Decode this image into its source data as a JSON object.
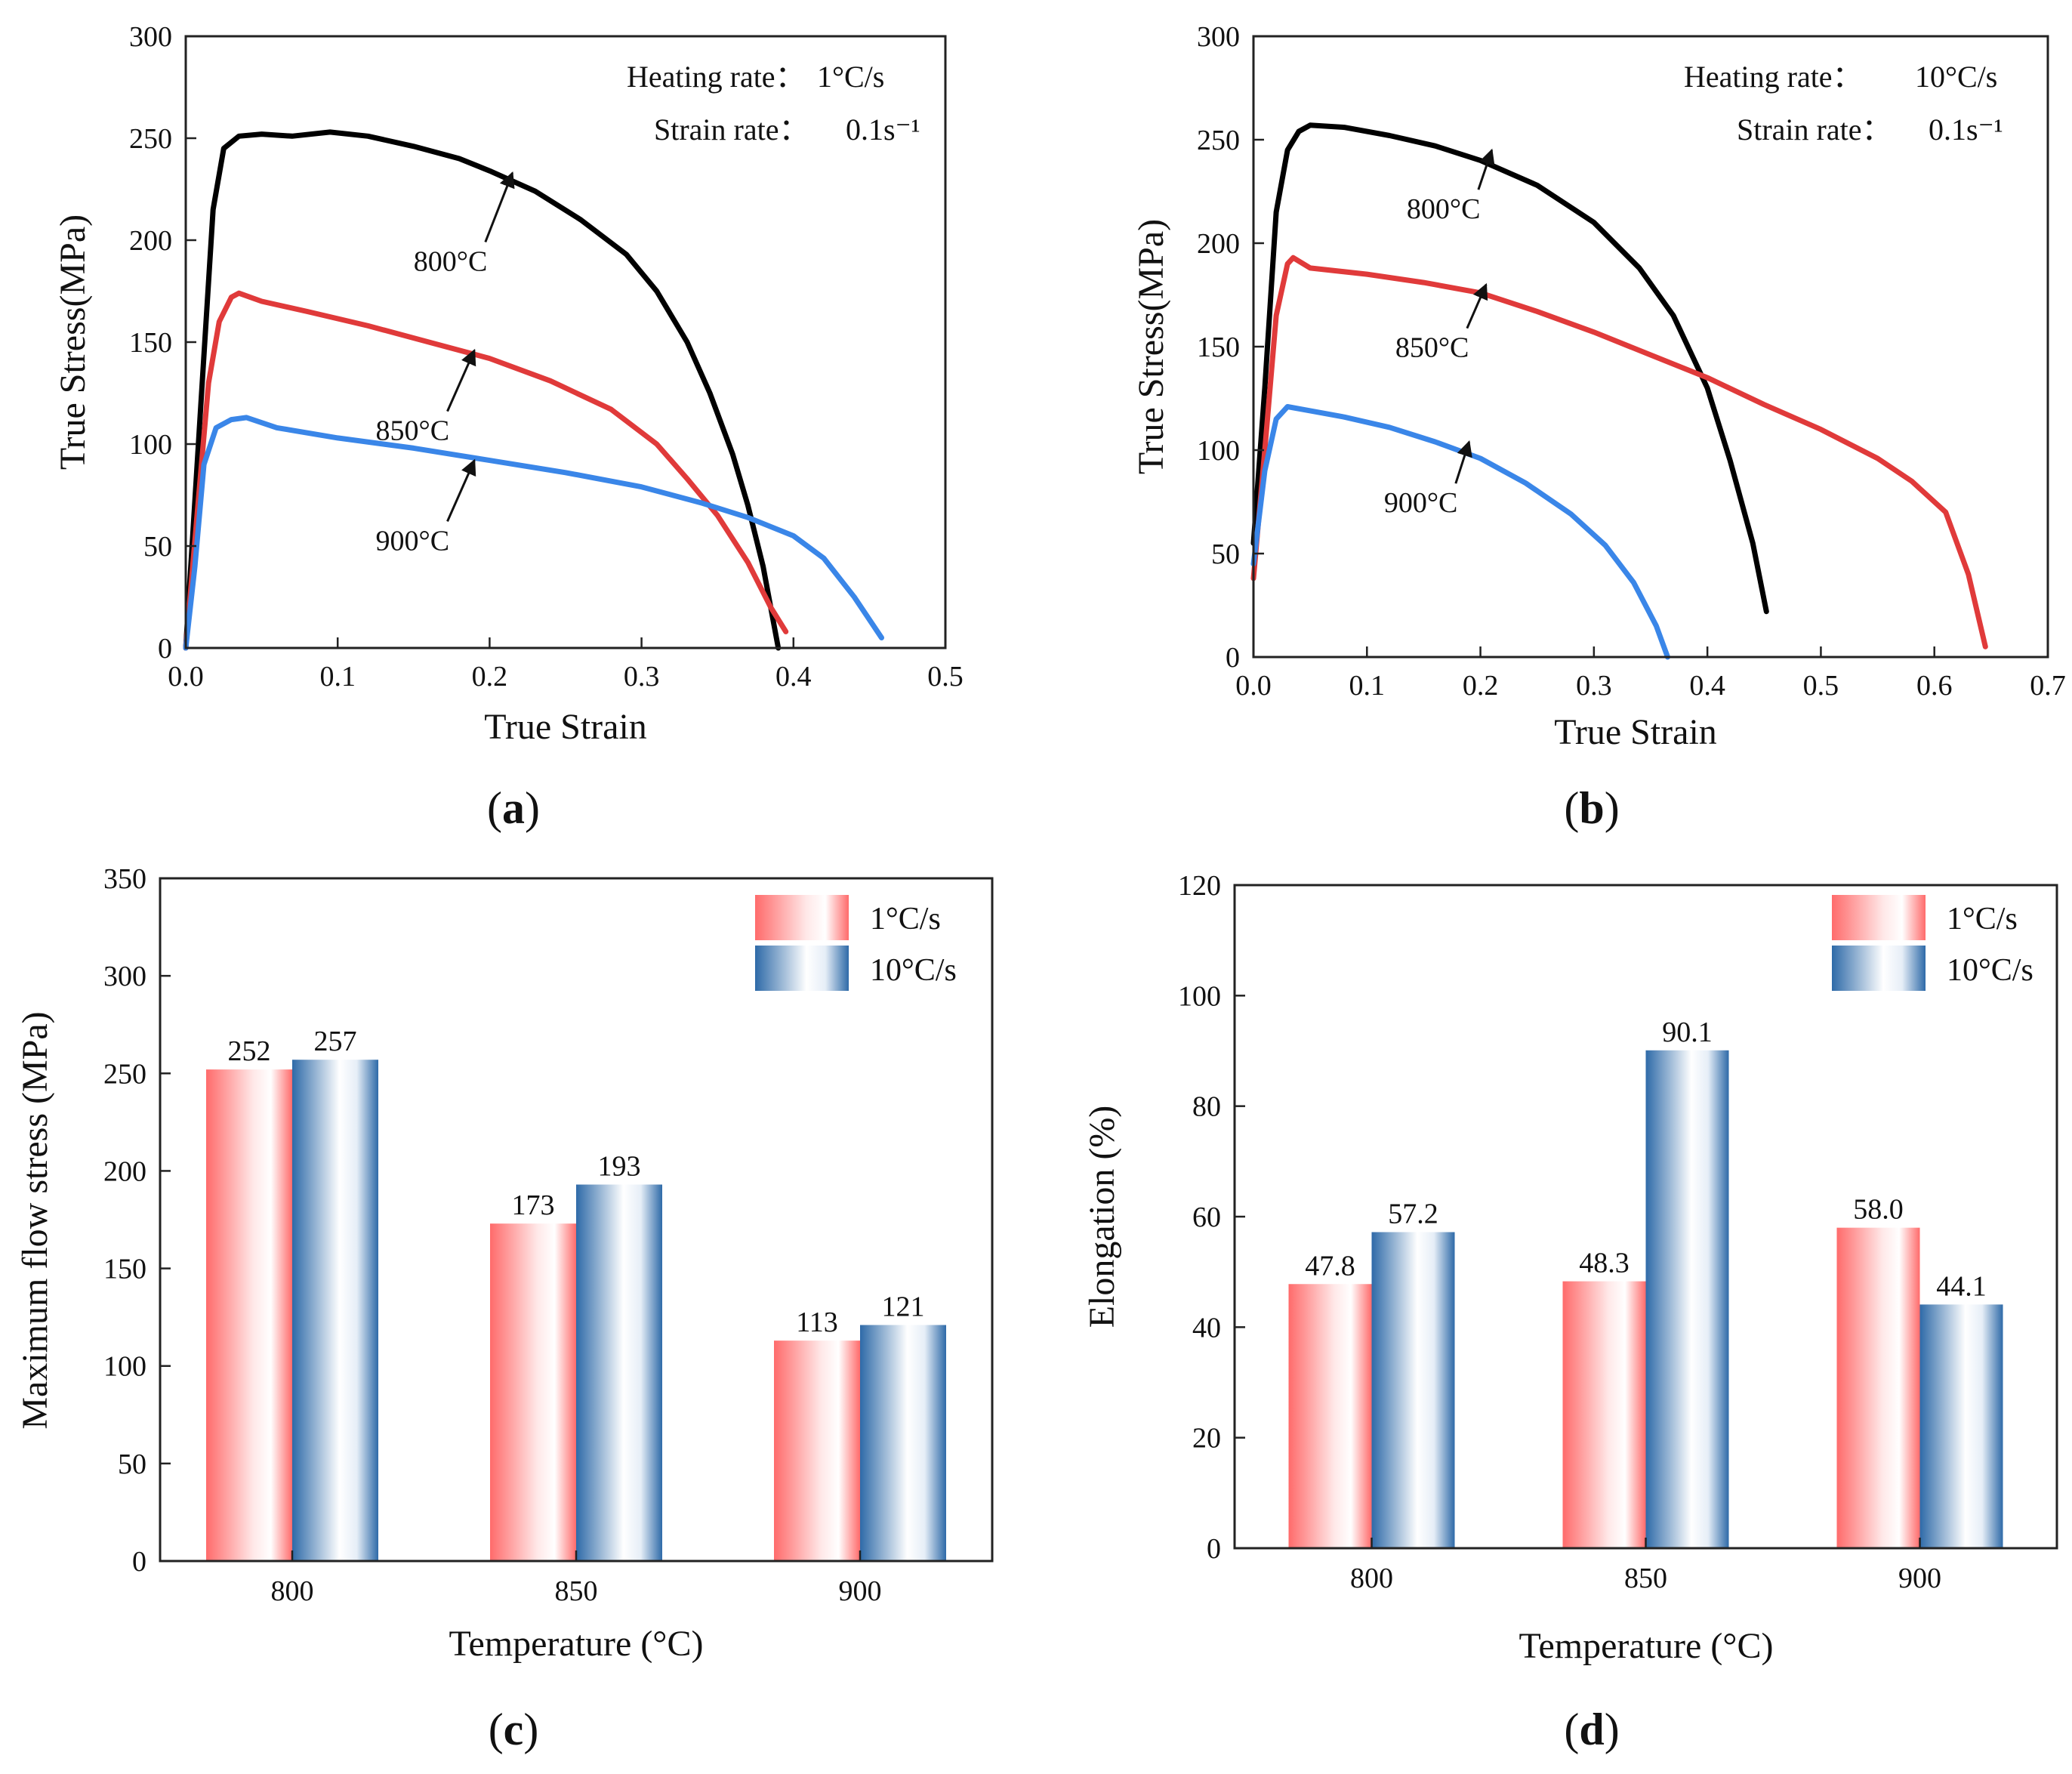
{
  "colors": {
    "black": "#000000",
    "red": "#e03a3a",
    "blue": "#3a86e8",
    "bar_red": "#ff6b6b",
    "bar_blue": "#2e6aa8"
  },
  "chart_data": [
    {
      "id": "a",
      "type": "line",
      "panel_label": {
        "open": "(",
        "letter": "a",
        "close": ")"
      },
      "xlabel": "True Strain",
      "ylabel": "True Stress(MPa)",
      "xlim": [
        0,
        0.5
      ],
      "ylim": [
        0,
        300
      ],
      "xticks": [
        "0.0",
        "0.1",
        "0.2",
        "0.3",
        "0.4",
        "0.5"
      ],
      "yticks": [
        "0",
        "50",
        "100",
        "150",
        "200",
        "250",
        "300"
      ],
      "conditions": [
        {
          "label": "Heating rate：",
          "value": "1°C/s"
        },
        {
          "label": "Strain rate：",
          "value": "0.1s⁻¹"
        }
      ],
      "series": [
        {
          "name": "800°C",
          "color": "#000000",
          "points": [
            [
              0.0,
              0
            ],
            [
              0.01,
              120
            ],
            [
              0.018,
              215
            ],
            [
              0.025,
              245
            ],
            [
              0.035,
              251
            ],
            [
              0.05,
              252
            ],
            [
              0.07,
              251
            ],
            [
              0.095,
              253
            ],
            [
              0.12,
              251
            ],
            [
              0.15,
              246
            ],
            [
              0.18,
              240
            ],
            [
              0.2,
              234
            ],
            [
              0.23,
              224
            ],
            [
              0.26,
              210
            ],
            [
              0.29,
              193
            ],
            [
              0.31,
              175
            ],
            [
              0.33,
              150
            ],
            [
              0.345,
              125
            ],
            [
              0.36,
              95
            ],
            [
              0.37,
              70
            ],
            [
              0.38,
              40
            ],
            [
              0.39,
              0
            ]
          ]
        },
        {
          "name": "850°C",
          "color": "#e03a3a",
          "points": [
            [
              0.0,
              0
            ],
            [
              0.008,
              70
            ],
            [
              0.015,
              130
            ],
            [
              0.022,
              160
            ],
            [
              0.03,
              172
            ],
            [
              0.035,
              174
            ],
            [
              0.05,
              170
            ],
            [
              0.08,
              165
            ],
            [
              0.12,
              158
            ],
            [
              0.16,
              150
            ],
            [
              0.2,
              142
            ],
            [
              0.24,
              131
            ],
            [
              0.28,
              117
            ],
            [
              0.31,
              100
            ],
            [
              0.33,
              83
            ],
            [
              0.35,
              65
            ],
            [
              0.37,
              42
            ],
            [
              0.385,
              20
            ],
            [
              0.395,
              8
            ]
          ]
        },
        {
          "name": "900°C",
          "color": "#3a86e8",
          "points": [
            [
              0.0,
              0
            ],
            [
              0.006,
              40
            ],
            [
              0.012,
              90
            ],
            [
              0.02,
              108
            ],
            [
              0.03,
              112
            ],
            [
              0.04,
              113
            ],
            [
              0.06,
              108
            ],
            [
              0.1,
              103
            ],
            [
              0.15,
              98
            ],
            [
              0.2,
              92
            ],
            [
              0.25,
              86
            ],
            [
              0.3,
              79
            ],
            [
              0.34,
              71
            ],
            [
              0.37,
              64
            ],
            [
              0.4,
              55
            ],
            [
              0.42,
              44
            ],
            [
              0.44,
              25
            ],
            [
              0.458,
              5
            ]
          ]
        }
      ],
      "annotations": [
        {
          "text": "800°C",
          "target": [
            0.215,
            233
          ],
          "label_at": [
            0.15,
            185
          ]
        },
        {
          "text": "850°C",
          "target": [
            0.19,
            146
          ],
          "label_at": [
            0.125,
            102
          ]
        },
        {
          "text": "900°C",
          "target": [
            0.19,
            92
          ],
          "label_at": [
            0.125,
            48
          ]
        }
      ]
    },
    {
      "id": "b",
      "type": "line",
      "panel_label": {
        "open": "(",
        "letter": "b",
        "close": ")"
      },
      "xlabel": "True Strain",
      "ylabel": "True Stress(MPa)",
      "xlim": [
        0,
        0.7
      ],
      "ylim": [
        0,
        300
      ],
      "xticks": [
        "0.0",
        "0.1",
        "0.2",
        "0.3",
        "0.4",
        "0.5",
        "0.6",
        "0.7"
      ],
      "yticks": [
        "0",
        "50",
        "100",
        "150",
        "200",
        "250",
        "300"
      ],
      "conditions": [
        {
          "label": "Heating rate：",
          "value": "10°C/s"
        },
        {
          "label": "Strain rate：",
          "value": "0.1s⁻¹"
        }
      ],
      "series": [
        {
          "name": "800°C",
          "color": "#000000",
          "points": [
            [
              0.0,
              55
            ],
            [
              0.01,
              130
            ],
            [
              0.02,
              215
            ],
            [
              0.03,
              245
            ],
            [
              0.04,
              254
            ],
            [
              0.05,
              257
            ],
            [
              0.08,
              256
            ],
            [
              0.12,
              252
            ],
            [
              0.16,
              247
            ],
            [
              0.2,
              240
            ],
            [
              0.25,
              228
            ],
            [
              0.3,
              210
            ],
            [
              0.34,
              188
            ],
            [
              0.37,
              165
            ],
            [
              0.4,
              130
            ],
            [
              0.42,
              95
            ],
            [
              0.44,
              55
            ],
            [
              0.452,
              22
            ]
          ]
        },
        {
          "name": "850°C",
          "color": "#e03a3a",
          "points": [
            [
              0.0,
              38
            ],
            [
              0.01,
              100
            ],
            [
              0.02,
              165
            ],
            [
              0.03,
              190
            ],
            [
              0.035,
              193
            ],
            [
              0.05,
              188
            ],
            [
              0.1,
              185
            ],
            [
              0.15,
              181
            ],
            [
              0.2,
              176
            ],
            [
              0.25,
              167
            ],
            [
              0.3,
              157
            ],
            [
              0.35,
              146
            ],
            [
              0.4,
              135
            ],
            [
              0.45,
              122
            ],
            [
              0.5,
              110
            ],
            [
              0.55,
              96
            ],
            [
              0.58,
              85
            ],
            [
              0.61,
              70
            ],
            [
              0.63,
              40
            ],
            [
              0.645,
              5
            ]
          ]
        },
        {
          "name": "900°C",
          "color": "#3a86e8",
          "points": [
            [
              0.0,
              45
            ],
            [
              0.01,
              90
            ],
            [
              0.02,
              115
            ],
            [
              0.03,
              121
            ],
            [
              0.05,
              119
            ],
            [
              0.08,
              116
            ],
            [
              0.12,
              111
            ],
            [
              0.16,
              104
            ],
            [
              0.2,
              96
            ],
            [
              0.24,
              84
            ],
            [
              0.28,
              69
            ],
            [
              0.31,
              54
            ],
            [
              0.335,
              36
            ],
            [
              0.355,
              15
            ],
            [
              0.365,
              0
            ]
          ]
        }
      ],
      "annotations": [
        {
          "text": "800°C",
          "target": [
            0.21,
            245
          ],
          "label_at": [
            0.135,
            212
          ]
        },
        {
          "text": "850°C",
          "target": [
            0.205,
            180
          ],
          "label_at": [
            0.125,
            145
          ]
        },
        {
          "text": "900°C",
          "target": [
            0.19,
            104
          ],
          "label_at": [
            0.115,
            70
          ]
        }
      ]
    },
    {
      "id": "c",
      "type": "bar",
      "panel_label": {
        "open": "(",
        "letter": "c",
        "close": ")"
      },
      "xlabel": "Temperature (°C)",
      "ylabel": "Maximum flow stress (MPa)",
      "ylim": [
        0,
        350
      ],
      "yticks": [
        "0",
        "50",
        "100",
        "150",
        "200",
        "250",
        "300",
        "350"
      ],
      "categories": [
        "800",
        "850",
        "900"
      ],
      "series": [
        {
          "name": "1°C/s",
          "values": [
            252,
            173,
            113
          ],
          "labels": [
            "252",
            "173",
            "113"
          ]
        },
        {
          "name": "10°C/s",
          "values": [
            257,
            193,
            121
          ],
          "labels": [
            "257",
            "193",
            "121"
          ]
        }
      ],
      "legend": "top-right"
    },
    {
      "id": "d",
      "type": "bar",
      "panel_label": {
        "open": "(",
        "letter": "d",
        "close": ")"
      },
      "xlabel": "Temperature (°C)",
      "ylabel": "Elongation (%)",
      "ylim": [
        0,
        120
      ],
      "yticks": [
        "0",
        "20",
        "40",
        "60",
        "80",
        "100",
        "120"
      ],
      "categories": [
        "800",
        "850",
        "900"
      ],
      "series": [
        {
          "name": "1°C/s",
          "values": [
            47.8,
            48.3,
            58.0
          ],
          "labels": [
            "47.8",
            "48.3",
            "58.0"
          ]
        },
        {
          "name": "10°C/s",
          "values": [
            57.2,
            90.1,
            44.1
          ],
          "labels": [
            "57.2",
            "90.1",
            "44.1"
          ]
        }
      ],
      "legend": "top-right"
    }
  ]
}
